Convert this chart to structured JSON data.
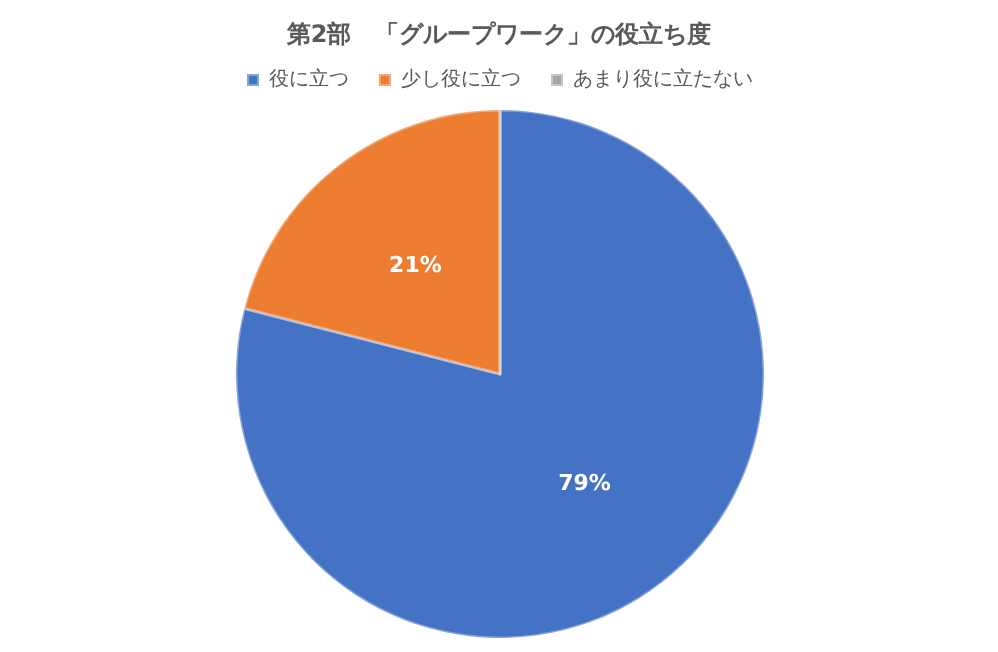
{
  "chart_data": {
    "type": "pie",
    "title": "第2部　「グループワーク」の役立ち度",
    "categories": [
      "役に立つ",
      "少し役に立つ",
      "あまり役に立たない"
    ],
    "values": [
      79,
      21,
      0
    ],
    "colors": [
      "#4472c4",
      "#ed7d31",
      "#a5a5a5"
    ],
    "value_labels": [
      "79%",
      "21%",
      null
    ],
    "legend": "top"
  }
}
